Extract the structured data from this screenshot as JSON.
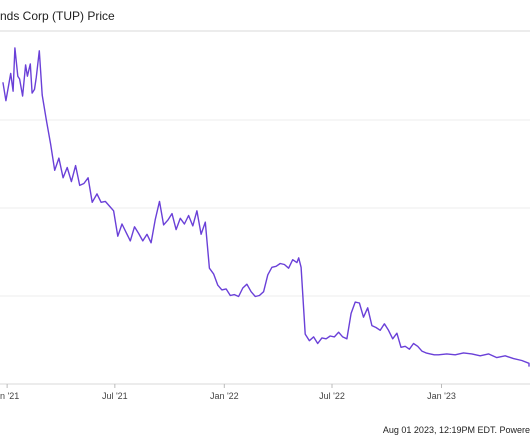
{
  "chart_data": {
    "type": "line",
    "title": "nds Corp (TUP) Price",
    "footer": "Aug 01 2023, 12:19PM EDT. Powere",
    "xlabel": "",
    "ylabel": "",
    "x_ticks": [
      "an '21",
      "Jul '21",
      "Jan '22",
      "Jul '22",
      "Jan '23",
      "Jul"
    ],
    "y_tick_labels_visible": false,
    "grid": true,
    "line_color": "#6a40d8",
    "series": [
      {
        "name": "",
        "x": [
          "2020-12-25",
          "2020-12-30",
          "2021-01-04",
          "2021-01-07",
          "2021-01-11",
          "2021-01-14",
          "2021-01-19",
          "2021-01-22",
          "2021-01-27",
          "2021-02-01",
          "2021-02-04",
          "2021-02-09",
          "2021-02-12",
          "2021-02-16",
          "2021-02-19",
          "2021-02-24",
          "2021-03-01",
          "2021-03-08",
          "2021-03-15",
          "2021-03-22",
          "2021-03-29",
          "2021-04-05",
          "2021-04-12",
          "2021-04-19",
          "2021-04-26",
          "2021-05-03",
          "2021-05-10",
          "2021-05-17",
          "2021-05-24",
          "2021-06-01",
          "2021-06-08",
          "2021-06-15",
          "2021-06-22",
          "2021-06-29",
          "2021-07-06",
          "2021-07-13",
          "2021-07-20",
          "2021-07-27",
          "2021-08-03",
          "2021-08-10",
          "2021-08-17",
          "2021-08-24",
          "2021-08-31",
          "2021-09-07",
          "2021-09-14",
          "2021-09-21",
          "2021-09-28",
          "2021-10-05",
          "2021-10-12",
          "2021-10-19",
          "2021-10-26",
          "2021-11-02",
          "2021-11-09",
          "2021-11-16",
          "2021-11-23",
          "2021-11-30",
          "2021-12-07",
          "2021-12-14",
          "2021-12-21",
          "2021-12-28",
          "2022-01-04",
          "2022-01-11",
          "2022-01-18",
          "2022-01-25",
          "2022-02-01",
          "2022-02-08",
          "2022-02-15",
          "2022-02-22",
          "2022-03-01",
          "2022-03-08",
          "2022-03-15",
          "2022-03-22",
          "2022-03-29",
          "2022-04-05",
          "2022-04-12",
          "2022-04-19",
          "2022-04-26",
          "2022-05-03",
          "2022-05-06",
          "2022-05-10",
          "2022-05-17",
          "2022-05-24",
          "2022-05-31",
          "2022-06-07",
          "2022-06-14",
          "2022-06-21",
          "2022-06-28",
          "2022-07-05",
          "2022-07-12",
          "2022-07-19",
          "2022-07-26",
          "2022-08-02",
          "2022-08-09",
          "2022-08-16",
          "2022-08-23",
          "2022-08-30",
          "2022-09-06",
          "2022-09-13",
          "2022-09-20",
          "2022-09-27",
          "2022-10-04",
          "2022-10-11",
          "2022-10-18",
          "2022-10-25",
          "2022-11-01",
          "2022-11-08",
          "2022-11-15",
          "2022-11-22",
          "2022-11-29",
          "2022-12-06",
          "2022-12-13",
          "2022-12-20",
          "2022-12-27",
          "2023-01-10",
          "2023-01-24",
          "2023-02-07",
          "2023-02-21",
          "2023-03-07",
          "2023-03-21",
          "2023-04-04",
          "2023-04-18",
          "2023-05-02",
          "2023-05-16",
          "2023-05-30",
          "2023-06-13",
          "2023-06-27",
          "2023-07-11",
          "2023-07-25",
          "2023-08-01"
        ],
        "y": [
          30.5,
          28.6,
          30.4,
          31.5,
          29.6,
          34.2,
          31.2,
          30.9,
          29.1,
          32.4,
          31.2,
          32.5,
          29.4,
          29.8,
          31.1,
          33.9,
          29.2,
          26.5,
          24.0,
          21.2,
          22.5,
          20.4,
          21.5,
          20.0,
          21.7,
          19.6,
          19.8,
          20.4,
          17.8,
          18.7,
          17.8,
          17.9,
          17.4,
          16.9,
          14.2,
          15.5,
          14.6,
          13.7,
          15.2,
          14.5,
          13.7,
          14.4,
          13.5,
          16.0,
          17.9,
          15.4,
          15.9,
          16.6,
          14.9,
          16.1,
          15.5,
          16.4,
          15.3,
          16.9,
          14.4,
          15.7,
          10.8,
          10.2,
          9.0,
          8.5,
          8.6,
          7.9,
          8.0,
          7.8,
          8.7,
          9.1,
          8.3,
          7.8,
          7.9,
          8.3,
          10.1,
          10.9,
          11.0,
          11.3,
          11.2,
          10.8,
          11.7,
          11.4,
          11.9,
          10.9,
          3.8,
          3.1,
          3.5,
          2.8,
          3.4,
          3.3,
          3.6,
          3.5,
          4.0,
          3.5,
          3.3,
          6.0,
          7.2,
          7.1,
          5.6,
          6.6,
          4.7,
          4.5,
          4.2,
          4.9,
          4.2,
          3.3,
          3.9,
          2.4,
          2.5,
          2.2,
          2.8,
          2.5,
          2.0,
          1.8,
          1.7,
          1.6,
          1.6,
          1.7,
          1.6,
          1.8,
          1.7,
          1.5,
          1.7,
          1.3,
          1.5,
          1.2,
          1.0,
          0.7,
          0.6,
          0.65,
          0.6,
          0.55,
          0.4
        ]
      }
    ],
    "ylim": [
      -1.5,
      36
    ]
  }
}
